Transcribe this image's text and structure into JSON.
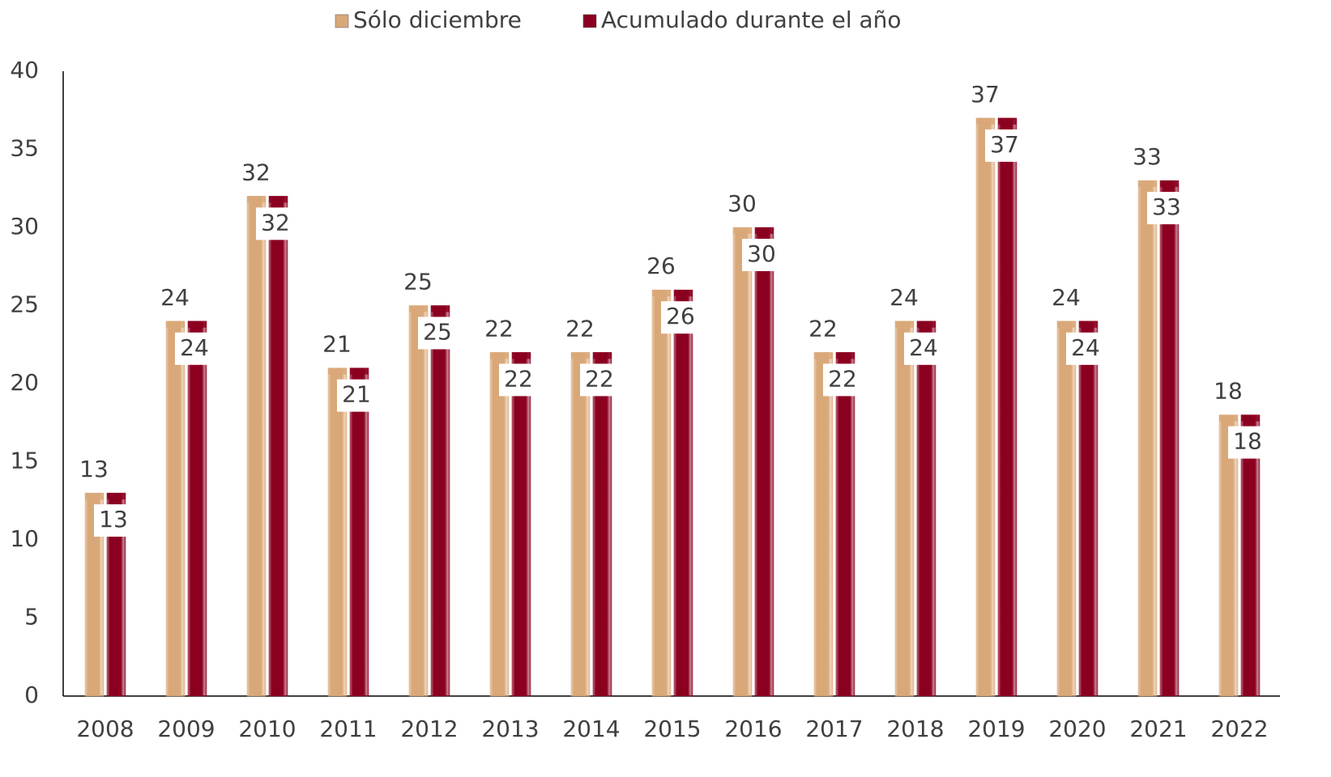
{
  "chart_data": {
    "type": "bar",
    "categories": [
      "2008",
      "2009",
      "2010",
      "2011",
      "2012",
      "2013",
      "2014",
      "2015",
      "2016",
      "2017",
      "2018",
      "2019",
      "2020",
      "2021",
      "2022"
    ],
    "series": [
      {
        "name": "Sólo diciembre",
        "color": "#d9a878",
        "values": [
          13,
          24,
          32,
          21,
          25,
          22,
          22,
          26,
          30,
          22,
          24,
          37,
          24,
          33,
          18
        ]
      },
      {
        "name": "Acumulado durante el año",
        "color": "#8b0020",
        "values": [
          13,
          24,
          32,
          21,
          25,
          22,
          22,
          26,
          30,
          22,
          24,
          37,
          24,
          33,
          18
        ]
      }
    ],
    "ylim": [
      0,
      40
    ],
    "yticks": [
      0,
      5,
      10,
      15,
      20,
      25,
      30,
      35,
      40
    ],
    "grid": false,
    "legend": "top"
  }
}
